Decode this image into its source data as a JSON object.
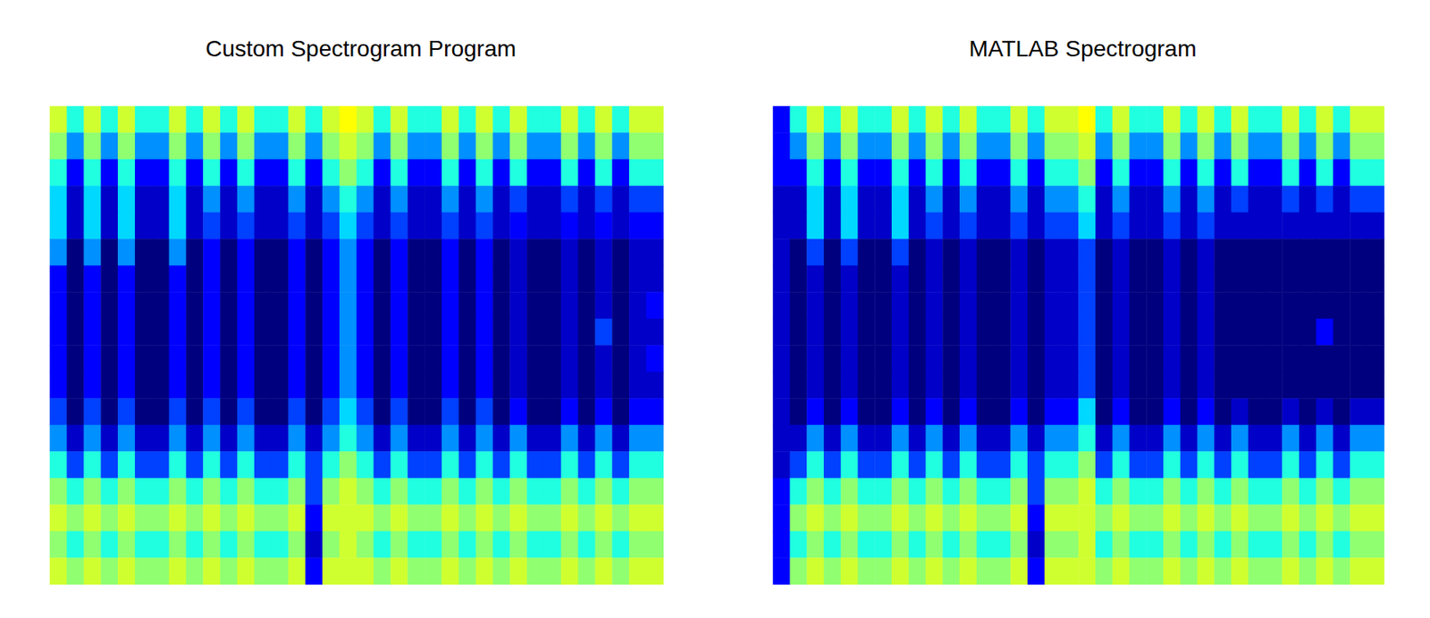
{
  "chart_data": [
    {
      "type": "heatmap",
      "title": "Custom Spectrogram Program",
      "tick_labels": false,
      "clim": [
        0,
        9
      ],
      "cells": [
        [
          8,
          6,
          8,
          6,
          8,
          6,
          6,
          8,
          6,
          8,
          6,
          8,
          6,
          6,
          8,
          6,
          8,
          9,
          8,
          6,
          8,
          6,
          6,
          8,
          6,
          8,
          6,
          8,
          6,
          6,
          8,
          6,
          8,
          6,
          8,
          8
        ],
        [
          7,
          4,
          7,
          4,
          7,
          4,
          4,
          7,
          4,
          7,
          4,
          7,
          4,
          4,
          7,
          4,
          7,
          8,
          7,
          4,
          7,
          4,
          4,
          7,
          4,
          7,
          4,
          7,
          4,
          4,
          7,
          4,
          7,
          4,
          7,
          7
        ],
        [
          6,
          2,
          6,
          2,
          6,
          2,
          2,
          6,
          2,
          6,
          2,
          6,
          2,
          2,
          6,
          2,
          6,
          7,
          6,
          2,
          6,
          2,
          2,
          6,
          2,
          6,
          2,
          6,
          2,
          2,
          6,
          2,
          6,
          2,
          6,
          6
        ],
        [
          5,
          1,
          5,
          1,
          5,
          1,
          1,
          5,
          1,
          4,
          1,
          4,
          1,
          1,
          4,
          1,
          4,
          6,
          4,
          1,
          4,
          1,
          1,
          4,
          1,
          4,
          1,
          3,
          1,
          1,
          3,
          1,
          3,
          1,
          3,
          3
        ],
        [
          5,
          1,
          5,
          1,
          5,
          1,
          1,
          5,
          1,
          3,
          1,
          3,
          1,
          1,
          3,
          1,
          3,
          5,
          3,
          1,
          3,
          1,
          1,
          3,
          1,
          3,
          1,
          2,
          1,
          1,
          2,
          1,
          2,
          1,
          2,
          2
        ],
        [
          4,
          0,
          4,
          0,
          4,
          0,
          0,
          4,
          0,
          2,
          0,
          2,
          0,
          0,
          2,
          0,
          2,
          4,
          2,
          0,
          2,
          0,
          0,
          2,
          0,
          2,
          0,
          1,
          0,
          0,
          1,
          0,
          1,
          0,
          1,
          1
        ],
        [
          2,
          0,
          2,
          0,
          2,
          0,
          0,
          2,
          0,
          2,
          0,
          2,
          0,
          0,
          2,
          0,
          2,
          4,
          2,
          0,
          2,
          0,
          0,
          2,
          0,
          2,
          0,
          1,
          0,
          0,
          1,
          0,
          1,
          0,
          1,
          1
        ],
        [
          2,
          0,
          2,
          0,
          2,
          0,
          0,
          2,
          0,
          2,
          0,
          2,
          0,
          0,
          2,
          0,
          2,
          4,
          2,
          0,
          2,
          0,
          0,
          2,
          0,
          2,
          0,
          1,
          0,
          0,
          1,
          0,
          1,
          0,
          1,
          2
        ],
        [
          2,
          0,
          2,
          0,
          2,
          0,
          0,
          2,
          0,
          2,
          0,
          2,
          0,
          0,
          2,
          0,
          2,
          4,
          2,
          0,
          2,
          0,
          0,
          2,
          0,
          2,
          0,
          1,
          0,
          0,
          1,
          0,
          3,
          0,
          1,
          1
        ],
        [
          2,
          0,
          2,
          0,
          2,
          0,
          0,
          2,
          0,
          2,
          0,
          2,
          0,
          0,
          2,
          0,
          2,
          4,
          2,
          0,
          2,
          0,
          0,
          2,
          0,
          2,
          0,
          1,
          0,
          0,
          1,
          0,
          1,
          0,
          1,
          2
        ],
        [
          2,
          0,
          2,
          0,
          2,
          0,
          0,
          2,
          0,
          2,
          0,
          2,
          0,
          0,
          2,
          0,
          2,
          4,
          2,
          0,
          2,
          0,
          0,
          2,
          0,
          2,
          0,
          1,
          0,
          0,
          1,
          0,
          1,
          0,
          1,
          1
        ],
        [
          3,
          0,
          3,
          0,
          3,
          0,
          0,
          3,
          0,
          3,
          0,
          3,
          0,
          0,
          3,
          0,
          3,
          5,
          3,
          0,
          3,
          0,
          0,
          3,
          0,
          3,
          0,
          2,
          0,
          0,
          2,
          0,
          2,
          0,
          2,
          2
        ],
        [
          4,
          1,
          4,
          1,
          4,
          1,
          1,
          4,
          1,
          4,
          1,
          4,
          1,
          1,
          4,
          1,
          4,
          6,
          4,
          1,
          4,
          1,
          1,
          4,
          1,
          4,
          1,
          4,
          1,
          1,
          4,
          1,
          4,
          1,
          4,
          4
        ],
        [
          6,
          3,
          6,
          3,
          6,
          3,
          3,
          6,
          3,
          6,
          3,
          6,
          3,
          3,
          6,
          3,
          6,
          7,
          6,
          3,
          6,
          3,
          3,
          6,
          3,
          6,
          3,
          6,
          3,
          3,
          6,
          3,
          6,
          3,
          6,
          6
        ],
        [
          7,
          6,
          7,
          6,
          7,
          6,
          6,
          7,
          6,
          7,
          6,
          7,
          6,
          6,
          7,
          3,
          7,
          8,
          7,
          6,
          7,
          6,
          6,
          7,
          6,
          7,
          6,
          7,
          6,
          6,
          7,
          6,
          7,
          6,
          7,
          7
        ],
        [
          8,
          7,
          8,
          7,
          8,
          7,
          7,
          8,
          7,
          8,
          7,
          8,
          7,
          7,
          8,
          2,
          8,
          8,
          8,
          7,
          8,
          7,
          7,
          8,
          7,
          8,
          7,
          8,
          7,
          7,
          8,
          7,
          8,
          7,
          8,
          8
        ],
        [
          7,
          6,
          7,
          6,
          7,
          6,
          6,
          7,
          6,
          7,
          6,
          7,
          6,
          6,
          7,
          1,
          7,
          8,
          7,
          6,
          7,
          6,
          6,
          7,
          6,
          7,
          6,
          7,
          6,
          6,
          7,
          6,
          7,
          6,
          7,
          7
        ],
        [
          8,
          7,
          8,
          7,
          8,
          7,
          7,
          8,
          7,
          8,
          7,
          8,
          7,
          7,
          8,
          2,
          8,
          8,
          8,
          7,
          8,
          7,
          7,
          8,
          7,
          8,
          7,
          8,
          7,
          7,
          8,
          7,
          8,
          7,
          8,
          8
        ]
      ]
    },
    {
      "type": "heatmap",
      "title": "MATLAB Spectrogram",
      "tick_labels": false,
      "clim": [
        0,
        9
      ],
      "cells": [
        [
          2,
          6,
          8,
          6,
          8,
          6,
          6,
          8,
          6,
          8,
          6,
          8,
          6,
          6,
          8,
          6,
          8,
          8,
          9,
          6,
          8,
          6,
          6,
          8,
          6,
          8,
          6,
          8,
          6,
          6,
          8,
          6,
          8,
          6,
          8,
          8
        ],
        [
          2,
          4,
          7,
          4,
          7,
          4,
          4,
          7,
          4,
          7,
          4,
          7,
          4,
          4,
          7,
          4,
          7,
          7,
          8,
          4,
          7,
          4,
          4,
          7,
          4,
          7,
          4,
          7,
          4,
          4,
          7,
          4,
          7,
          4,
          7,
          7
        ],
        [
          2,
          2,
          6,
          2,
          6,
          2,
          2,
          6,
          2,
          6,
          2,
          6,
          2,
          2,
          6,
          2,
          6,
          6,
          7,
          2,
          6,
          2,
          2,
          6,
          2,
          6,
          2,
          6,
          2,
          2,
          6,
          2,
          6,
          2,
          6,
          6
        ],
        [
          1,
          1,
          5,
          1,
          5,
          1,
          1,
          5,
          1,
          4,
          1,
          4,
          1,
          1,
          4,
          1,
          4,
          4,
          6,
          1,
          4,
          1,
          1,
          4,
          1,
          4,
          1,
          3,
          1,
          1,
          3,
          1,
          3,
          1,
          3,
          3
        ],
        [
          1,
          1,
          5,
          1,
          5,
          1,
          1,
          5,
          1,
          3,
          1,
          3,
          1,
          1,
          3,
          1,
          3,
          3,
          5,
          1,
          3,
          1,
          1,
          3,
          1,
          3,
          1,
          1,
          1,
          1,
          1,
          1,
          1,
          1,
          1,
          1
        ],
        [
          1,
          0,
          3,
          0,
          3,
          0,
          0,
          3,
          0,
          1,
          0,
          1,
          0,
          0,
          1,
          0,
          1,
          1,
          3,
          0,
          1,
          0,
          0,
          1,
          0,
          1,
          0,
          0,
          0,
          0,
          0,
          0,
          0,
          0,
          0,
          0
        ],
        [
          1,
          0,
          1,
          0,
          1,
          0,
          0,
          1,
          0,
          1,
          0,
          1,
          0,
          0,
          1,
          0,
          1,
          1,
          3,
          0,
          1,
          0,
          0,
          1,
          0,
          1,
          0,
          0,
          0,
          0,
          0,
          0,
          0,
          0,
          0,
          0
        ],
        [
          1,
          0,
          1,
          0,
          1,
          0,
          0,
          1,
          0,
          1,
          0,
          1,
          0,
          0,
          1,
          0,
          1,
          1,
          3,
          0,
          1,
          0,
          0,
          1,
          0,
          1,
          0,
          0,
          0,
          0,
          0,
          0,
          0,
          0,
          0,
          0
        ],
        [
          1,
          0,
          1,
          0,
          1,
          0,
          0,
          1,
          0,
          1,
          0,
          1,
          0,
          0,
          1,
          0,
          1,
          1,
          3,
          0,
          1,
          0,
          0,
          1,
          0,
          1,
          0,
          0,
          0,
          0,
          0,
          0,
          2,
          0,
          0,
          0
        ],
        [
          1,
          0,
          1,
          0,
          1,
          0,
          0,
          1,
          0,
          1,
          0,
          1,
          0,
          0,
          1,
          0,
          1,
          1,
          3,
          0,
          1,
          0,
          0,
          1,
          0,
          1,
          0,
          0,
          0,
          0,
          0,
          0,
          0,
          0,
          0,
          0
        ],
        [
          1,
          0,
          1,
          0,
          1,
          0,
          0,
          1,
          0,
          1,
          0,
          1,
          0,
          0,
          1,
          0,
          1,
          1,
          3,
          0,
          1,
          0,
          0,
          1,
          0,
          1,
          0,
          0,
          0,
          0,
          0,
          0,
          0,
          0,
          0,
          0
        ],
        [
          1,
          0,
          2,
          0,
          2,
          0,
          0,
          2,
          0,
          2,
          0,
          2,
          0,
          0,
          2,
          0,
          2,
          2,
          5,
          0,
          2,
          0,
          0,
          2,
          0,
          2,
          0,
          1,
          0,
          0,
          1,
          0,
          1,
          0,
          1,
          1
        ],
        [
          1,
          1,
          4,
          1,
          4,
          1,
          1,
          4,
          1,
          4,
          1,
          4,
          1,
          1,
          4,
          1,
          4,
          4,
          6,
          1,
          4,
          1,
          1,
          4,
          1,
          4,
          1,
          4,
          1,
          1,
          4,
          1,
          4,
          1,
          4,
          4
        ],
        [
          1,
          3,
          6,
          3,
          6,
          3,
          3,
          6,
          3,
          6,
          3,
          6,
          3,
          3,
          6,
          3,
          6,
          6,
          7,
          3,
          6,
          3,
          3,
          6,
          3,
          6,
          3,
          6,
          3,
          3,
          6,
          3,
          6,
          3,
          6,
          6
        ],
        [
          2,
          6,
          7,
          6,
          7,
          6,
          6,
          7,
          6,
          7,
          6,
          7,
          6,
          6,
          7,
          3,
          7,
          7,
          8,
          6,
          7,
          6,
          6,
          7,
          6,
          7,
          6,
          7,
          6,
          6,
          7,
          6,
          7,
          6,
          7,
          7
        ],
        [
          2,
          7,
          8,
          7,
          8,
          7,
          7,
          8,
          7,
          8,
          7,
          8,
          7,
          7,
          8,
          2,
          8,
          8,
          8,
          7,
          8,
          7,
          7,
          8,
          7,
          8,
          7,
          8,
          7,
          7,
          8,
          7,
          8,
          7,
          8,
          8
        ],
        [
          2,
          6,
          7,
          6,
          7,
          6,
          6,
          7,
          6,
          7,
          6,
          7,
          6,
          6,
          7,
          1,
          7,
          7,
          8,
          6,
          7,
          6,
          6,
          7,
          6,
          7,
          6,
          7,
          6,
          6,
          7,
          6,
          7,
          6,
          7,
          7
        ],
        [
          2,
          7,
          8,
          7,
          8,
          7,
          7,
          8,
          7,
          8,
          7,
          8,
          7,
          7,
          8,
          2,
          8,
          8,
          8,
          7,
          8,
          7,
          7,
          8,
          7,
          8,
          7,
          8,
          7,
          7,
          8,
          7,
          8,
          7,
          8,
          8
        ]
      ]
    }
  ]
}
